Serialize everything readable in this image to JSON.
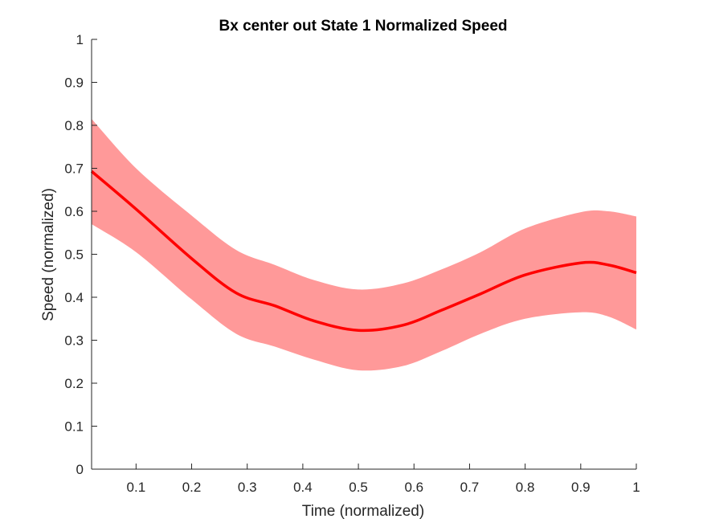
{
  "chart_data": {
    "type": "line",
    "title": "Bx  center out State 1 Normalized Speed",
    "xlabel": "Time (normalized)",
    "ylabel": "Speed (normalized)",
    "xlim": [
      0.02,
      1.0
    ],
    "ylim": [
      0,
      1
    ],
    "xticks": [
      0.1,
      0.2,
      0.3,
      0.4,
      0.5,
      0.6,
      0.7,
      0.8,
      0.9,
      1
    ],
    "xtick_labels": [
      "0.1",
      "0.2",
      "0.3",
      "0.4",
      "0.5",
      "0.6",
      "0.7",
      "0.8",
      "0.9",
      "1"
    ],
    "yticks": [
      0,
      0.1,
      0.2,
      0.3,
      0.4,
      0.5,
      0.6,
      0.7,
      0.8,
      0.9,
      1
    ],
    "ytick_labels": [
      "0",
      "0.1",
      "0.2",
      "0.3",
      "0.4",
      "0.5",
      "0.6",
      "0.7",
      "0.8",
      "0.9",
      "1"
    ],
    "grid": false,
    "colors": {
      "line": "#ff0000",
      "band": "#ff9999"
    },
    "series": [
      {
        "x": [
          0.02,
          0.1,
          0.2,
          0.28,
          0.35,
          0.42,
          0.5,
          0.58,
          0.65,
          0.72,
          0.8,
          0.9,
          0.95,
          1.0
        ],
        "mean": [
          0.693,
          0.605,
          0.49,
          0.41,
          0.38,
          0.345,
          0.323,
          0.335,
          0.37,
          0.408,
          0.452,
          0.48,
          0.475,
          0.457
        ],
        "lower": [
          0.57,
          0.505,
          0.395,
          0.315,
          0.285,
          0.255,
          0.23,
          0.24,
          0.275,
          0.315,
          0.35,
          0.365,
          0.355,
          0.325
        ],
        "upper": [
          0.815,
          0.7,
          0.59,
          0.51,
          0.475,
          0.44,
          0.418,
          0.432,
          0.465,
          0.505,
          0.56,
          0.598,
          0.6,
          0.588
        ]
      }
    ]
  }
}
